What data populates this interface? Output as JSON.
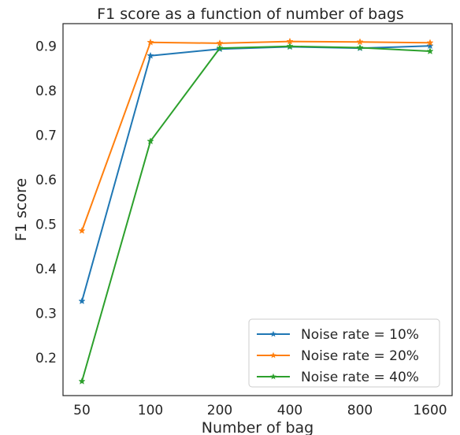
{
  "chart_data": {
    "type": "line",
    "title": "F1 score as a function of number of bags",
    "xlabel": "Number of bag",
    "ylabel": "F1 score",
    "categories": [
      "50",
      "100",
      "200",
      "400",
      "800",
      "1600"
    ],
    "yticks": [
      "0.2",
      "0.3",
      "0.4",
      "0.5",
      "0.6",
      "0.7",
      "0.8",
      "0.9"
    ],
    "ytick_values": [
      0.2,
      0.3,
      0.4,
      0.5,
      0.6,
      0.7,
      0.8,
      0.9
    ],
    "ylim": [
      0.115,
      0.95
    ],
    "grid": false,
    "legend_position": "bottom-right",
    "marker": "star",
    "series": [
      {
        "name": "Noise rate = 10%",
        "color": "#1f77b4",
        "values": [
          0.327,
          0.878,
          0.893,
          0.898,
          0.895,
          0.9
        ]
      },
      {
        "name": "Noise rate = 20%",
        "color": "#ff7f0e",
        "values": [
          0.485,
          0.908,
          0.906,
          0.91,
          0.909,
          0.907
        ]
      },
      {
        "name": "Noise rate = 40%",
        "color": "#2ca02c",
        "values": [
          0.147,
          0.686,
          0.895,
          0.899,
          0.896,
          0.888
        ]
      }
    ]
  }
}
